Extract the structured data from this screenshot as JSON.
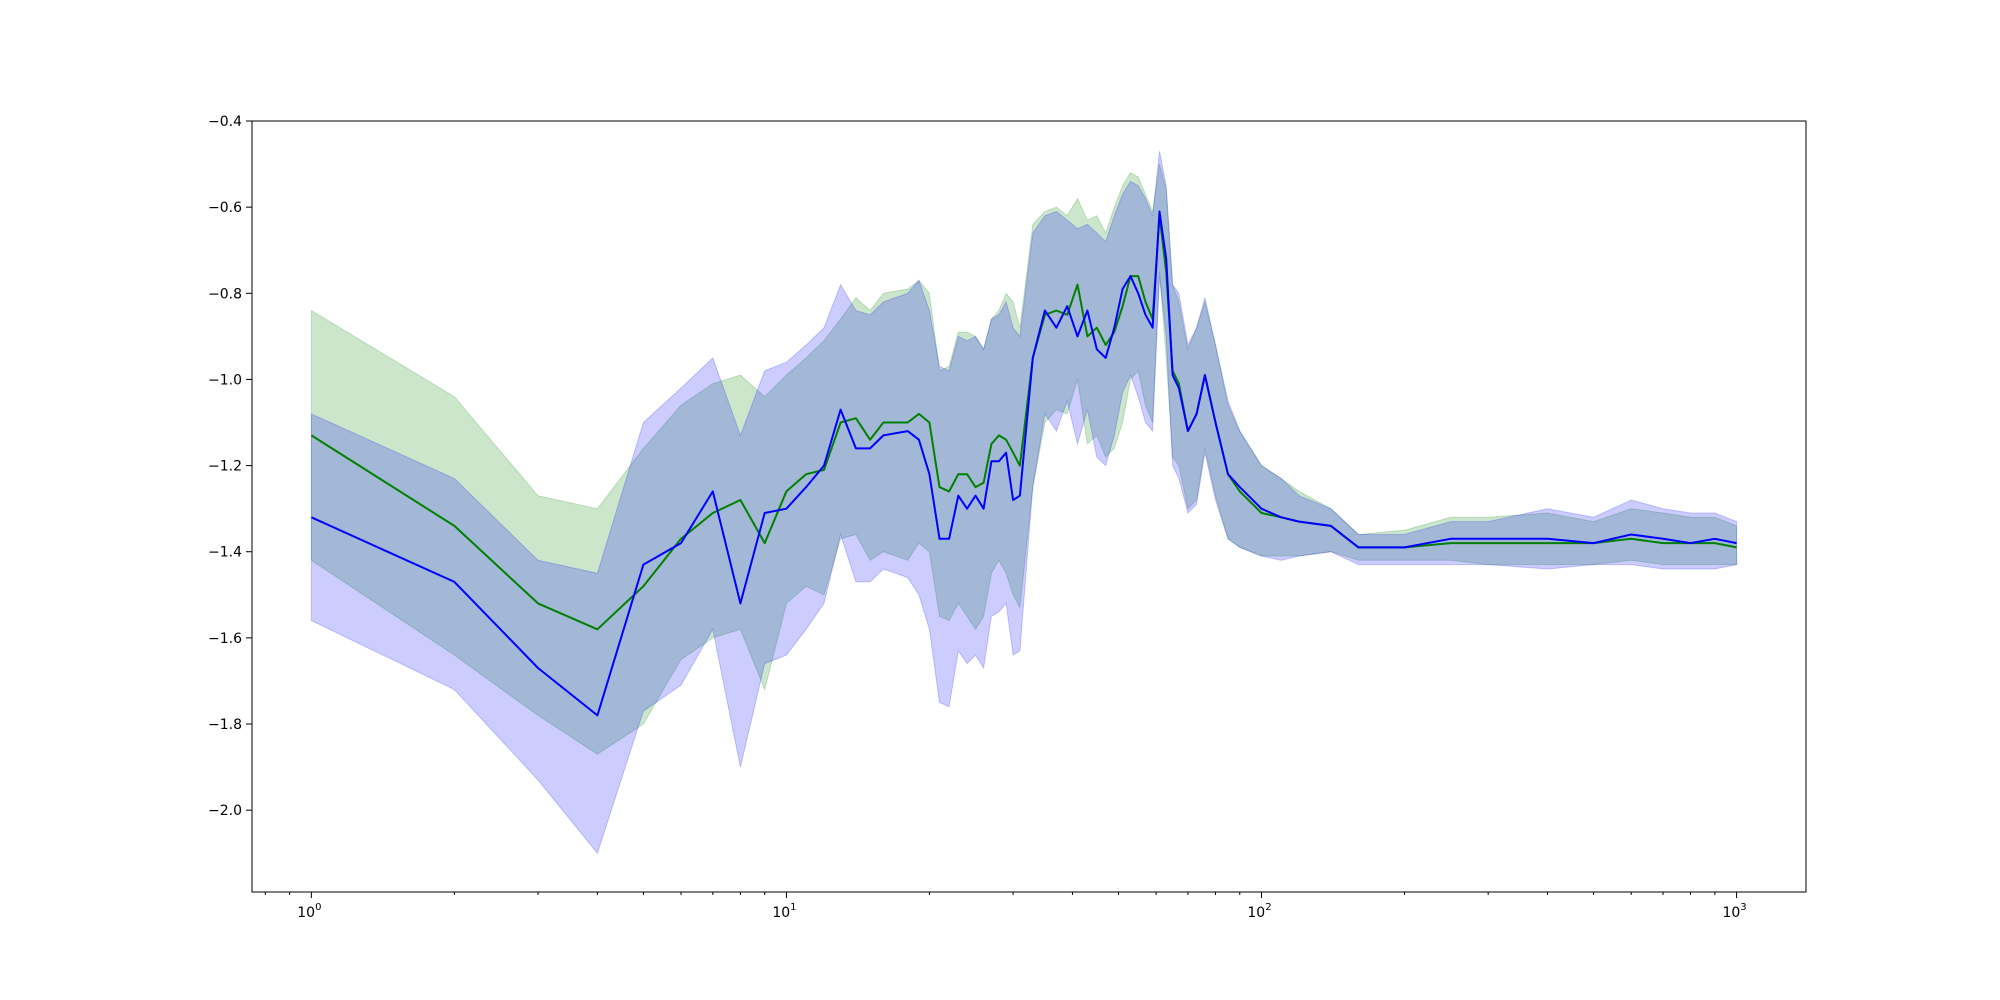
{
  "chart_data": {
    "type": "line",
    "title": "",
    "xlabel": "",
    "ylabel": "",
    "xscale": "log",
    "xlim": [
      0.75,
      1400
    ],
    "ylim": [
      -2.19,
      -0.4
    ],
    "grid": false,
    "legend": "none",
    "x_ticks": [
      {
        "value": 1,
        "base": "10",
        "exp": "0"
      },
      {
        "value": 10,
        "base": "10",
        "exp": "1"
      },
      {
        "value": 100,
        "base": "10",
        "exp": "2"
      },
      {
        "value": 1000,
        "base": "10",
        "exp": "3"
      }
    ],
    "y_ticks": [
      {
        "value": -0.4,
        "label": "−0.4"
      },
      {
        "value": -0.6,
        "label": "−0.6"
      },
      {
        "value": -0.8,
        "label": "−0.8"
      },
      {
        "value": -1.0,
        "label": "−1.0"
      },
      {
        "value": -1.2,
        "label": "−1.2"
      },
      {
        "value": -1.4,
        "label": "−1.4"
      },
      {
        "value": -1.6,
        "label": "−1.6"
      },
      {
        "value": -1.8,
        "label": "−1.8"
      },
      {
        "value": -2.0,
        "label": "−2.0"
      }
    ],
    "series": [
      {
        "color": "#008000",
        "band_color": "#008000",
        "band_opacity": 0.2,
        "x": [
          1,
          2,
          3,
          4,
          5,
          6,
          7,
          8,
          9,
          10,
          11,
          12,
          13,
          14,
          15,
          16,
          18,
          19,
          20,
          21,
          22,
          23,
          24,
          25,
          26,
          27,
          28,
          29,
          30,
          31,
          33,
          35,
          37,
          39,
          41,
          43,
          45,
          47,
          49,
          51,
          53,
          55,
          57,
          59,
          61,
          63,
          65,
          67,
          70,
          73,
          76,
          80,
          85,
          90,
          100,
          110,
          120,
          140,
          160,
          200,
          250,
          300,
          400,
          500,
          600,
          700,
          800,
          900,
          1000
        ],
        "y": [
          -1.13,
          -1.34,
          -1.52,
          -1.58,
          -1.48,
          -1.37,
          -1.31,
          -1.28,
          -1.38,
          -1.26,
          -1.22,
          -1.21,
          -1.1,
          -1.09,
          -1.14,
          -1.1,
          -1.1,
          -1.08,
          -1.1,
          -1.25,
          -1.26,
          -1.22,
          -1.22,
          -1.25,
          -1.24,
          -1.15,
          -1.13,
          -1.14,
          -1.17,
          -1.2,
          -0.95,
          -0.85,
          -0.84,
          -0.85,
          -0.78,
          -0.9,
          -0.88,
          -0.92,
          -0.89,
          -0.83,
          -0.76,
          -0.76,
          -0.82,
          -0.86,
          -0.62,
          -0.75,
          -0.98,
          -1.01,
          -1.12,
          -1.08,
          -0.99,
          -1.1,
          -1.22,
          -1.26,
          -1.31,
          -1.32,
          -1.33,
          -1.34,
          -1.39,
          -1.39,
          -1.38,
          -1.38,
          -1.38,
          -1.38,
          -1.37,
          -1.38,
          -1.38,
          -1.38,
          -1.39
        ],
        "upper": [
          -0.84,
          -1.04,
          -1.27,
          -1.3,
          -1.16,
          -1.06,
          -1.01,
          -0.99,
          -1.04,
          -0.99,
          -0.95,
          -0.91,
          -0.86,
          -0.81,
          -0.84,
          -0.8,
          -0.79,
          -0.77,
          -0.8,
          -0.98,
          -0.97,
          -0.89,
          -0.89,
          -0.9,
          -0.93,
          -0.86,
          -0.84,
          -0.8,
          -0.82,
          -0.88,
          -0.64,
          -0.61,
          -0.6,
          -0.62,
          -0.58,
          -0.63,
          -0.62,
          -0.66,
          -0.6,
          -0.55,
          -0.52,
          -0.53,
          -0.57,
          -0.61,
          -0.5,
          -0.56,
          -0.78,
          -0.82,
          -0.93,
          -0.88,
          -0.82,
          -0.92,
          -1.06,
          -1.12,
          -1.2,
          -1.23,
          -1.26,
          -1.3,
          -1.36,
          -1.35,
          -1.32,
          -1.32,
          -1.31,
          -1.33,
          -1.3,
          -1.31,
          -1.32,
          -1.32,
          -1.34
        ],
        "lower": [
          -1.42,
          -1.64,
          -1.78,
          -1.87,
          -1.8,
          -1.65,
          -1.6,
          -1.58,
          -1.72,
          -1.52,
          -1.48,
          -1.5,
          -1.37,
          -1.36,
          -1.42,
          -1.4,
          -1.42,
          -1.38,
          -1.4,
          -1.55,
          -1.56,
          -1.52,
          -1.55,
          -1.58,
          -1.55,
          -1.45,
          -1.42,
          -1.45,
          -1.5,
          -1.53,
          -1.25,
          -1.1,
          -1.07,
          -1.08,
          -1.0,
          -1.15,
          -1.13,
          -1.18,
          -1.16,
          -1.1,
          -1.0,
          -0.98,
          -1.06,
          -1.1,
          -0.75,
          -0.95,
          -1.18,
          -1.2,
          -1.3,
          -1.28,
          -1.16,
          -1.27,
          -1.37,
          -1.39,
          -1.41,
          -1.41,
          -1.41,
          -1.4,
          -1.42,
          -1.42,
          -1.42,
          -1.43,
          -1.43,
          -1.43,
          -1.42,
          -1.43,
          -1.43,
          -1.43,
          -1.43
        ]
      },
      {
        "color": "#0000ff",
        "band_color": "#0000ff",
        "band_opacity": 0.2,
        "x": [
          1,
          2,
          3,
          4,
          5,
          6,
          7,
          8,
          9,
          10,
          11,
          12,
          13,
          14,
          15,
          16,
          18,
          19,
          20,
          21,
          22,
          23,
          24,
          25,
          26,
          27,
          28,
          29,
          30,
          31,
          33,
          35,
          37,
          39,
          41,
          43,
          45,
          47,
          49,
          51,
          53,
          55,
          57,
          59,
          61,
          63,
          65,
          67,
          70,
          73,
          76,
          80,
          85,
          90,
          100,
          110,
          120,
          140,
          160,
          200,
          250,
          300,
          400,
          500,
          600,
          700,
          800,
          900,
          1000
        ],
        "y": [
          -1.32,
          -1.47,
          -1.67,
          -1.78,
          -1.43,
          -1.38,
          -1.26,
          -1.52,
          -1.31,
          -1.3,
          -1.25,
          -1.2,
          -1.07,
          -1.16,
          -1.16,
          -1.13,
          -1.12,
          -1.14,
          -1.22,
          -1.37,
          -1.37,
          -1.27,
          -1.3,
          -1.27,
          -1.3,
          -1.19,
          -1.19,
          -1.17,
          -1.28,
          -1.27,
          -0.95,
          -0.84,
          -0.88,
          -0.83,
          -0.9,
          -0.84,
          -0.93,
          -0.95,
          -0.88,
          -0.79,
          -0.76,
          -0.8,
          -0.85,
          -0.88,
          -0.61,
          -0.72,
          -0.99,
          -1.02,
          -1.12,
          -1.08,
          -0.99,
          -1.1,
          -1.22,
          -1.25,
          -1.3,
          -1.32,
          -1.33,
          -1.34,
          -1.39,
          -1.39,
          -1.37,
          -1.37,
          -1.37,
          -1.38,
          -1.36,
          -1.37,
          -1.38,
          -1.37,
          -1.38
        ],
        "upper": [
          -1.08,
          -1.23,
          -1.42,
          -1.45,
          -1.1,
          -1.02,
          -0.95,
          -1.13,
          -0.98,
          -0.96,
          -0.92,
          -0.88,
          -0.78,
          -0.84,
          -0.85,
          -0.82,
          -0.8,
          -0.77,
          -0.84,
          -0.97,
          -0.98,
          -0.9,
          -0.91,
          -0.9,
          -0.93,
          -0.86,
          -0.85,
          -0.82,
          -0.88,
          -0.9,
          -0.66,
          -0.62,
          -0.61,
          -0.63,
          -0.65,
          -0.64,
          -0.66,
          -0.68,
          -0.62,
          -0.57,
          -0.54,
          -0.55,
          -0.58,
          -0.62,
          -0.47,
          -0.55,
          -0.78,
          -0.8,
          -0.92,
          -0.88,
          -0.81,
          -0.92,
          -1.05,
          -1.12,
          -1.2,
          -1.23,
          -1.27,
          -1.3,
          -1.36,
          -1.36,
          -1.33,
          -1.33,
          -1.3,
          -1.32,
          -1.28,
          -1.3,
          -1.31,
          -1.31,
          -1.33
        ],
        "lower": [
          -1.56,
          -1.72,
          -1.93,
          -2.1,
          -1.77,
          -1.71,
          -1.58,
          -1.9,
          -1.66,
          -1.64,
          -1.58,
          -1.52,
          -1.36,
          -1.47,
          -1.47,
          -1.44,
          -1.46,
          -1.5,
          -1.58,
          -1.75,
          -1.76,
          -1.63,
          -1.66,
          -1.64,
          -1.67,
          -1.55,
          -1.54,
          -1.52,
          -1.64,
          -1.63,
          -1.25,
          -1.08,
          -1.12,
          -1.05,
          -1.15,
          -1.07,
          -1.18,
          -1.2,
          -1.13,
          -1.03,
          -0.99,
          -1.04,
          -1.1,
          -1.12,
          -0.76,
          -0.9,
          -1.2,
          -1.23,
          -1.31,
          -1.29,
          -1.17,
          -1.28,
          -1.37,
          -1.39,
          -1.41,
          -1.42,
          -1.41,
          -1.4,
          -1.43,
          -1.43,
          -1.43,
          -1.43,
          -1.44,
          -1.43,
          -1.43,
          -1.44,
          -1.44,
          -1.44,
          -1.43
        ]
      }
    ]
  }
}
